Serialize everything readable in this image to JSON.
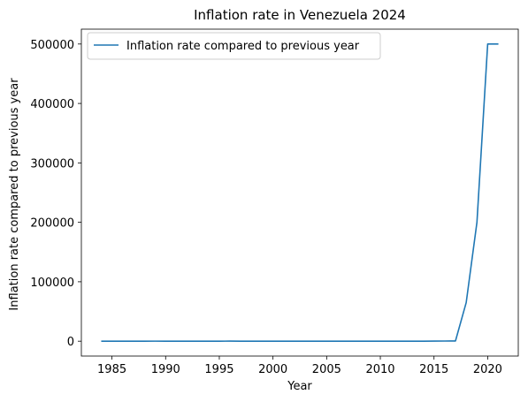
{
  "chart_data": {
    "type": "line",
    "title": "Inflation rate in Venezuela 2024",
    "xlabel": "Year",
    "ylabel": "Inflation rate compared to previous year",
    "xlim": [
      1982.15,
      2022.85
    ],
    "ylim": [
      -25000,
      525000
    ],
    "xticks": [
      1985,
      1990,
      1995,
      2000,
      2005,
      2010,
      2015,
      2020
    ],
    "yticks": [
      0,
      100000,
      200000,
      300000,
      400000,
      500000
    ],
    "grid": false,
    "legend_position": "top-left",
    "series": [
      {
        "name": "Inflation rate compared to previous year",
        "color": "#1f77b4",
        "x": [
          1984,
          1985,
          1986,
          1987,
          1988,
          1989,
          1990,
          1991,
          1992,
          1993,
          1994,
          1995,
          1996,
          1997,
          1998,
          1999,
          2000,
          2001,
          2002,
          2003,
          2004,
          2005,
          2006,
          2007,
          2008,
          2009,
          2010,
          2011,
          2012,
          2013,
          2014,
          2015,
          2016,
          2017,
          2018,
          2019,
          2020,
          2021
        ],
        "y": [
          12,
          11,
          12,
          28,
          30,
          84,
          41,
          34,
          31,
          38,
          61,
          60,
          100,
          50,
          36,
          24,
          16,
          12,
          22,
          31,
          22,
          16,
          14,
          19,
          31,
          27,
          28,
          26,
          21,
          41,
          62,
          121,
          255,
          438,
          65000,
          200000,
          500000,
          500000
        ]
      }
    ]
  }
}
